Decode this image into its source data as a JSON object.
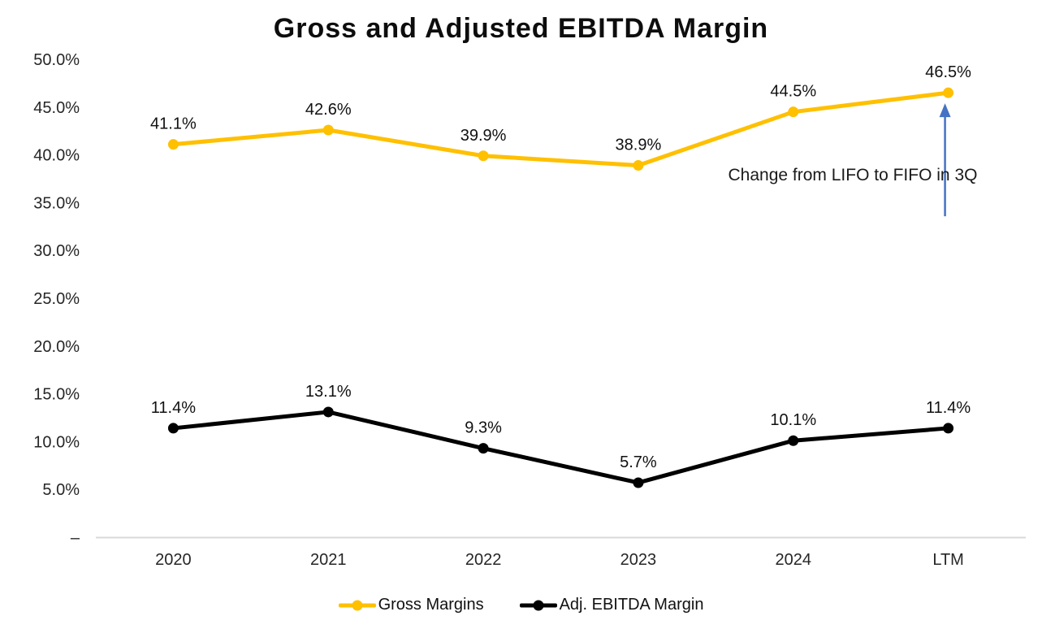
{
  "chart_data": {
    "type": "line",
    "title": "Gross and Adjusted EBITDA Margin",
    "categories": [
      "2020",
      "2021",
      "2022",
      "2023",
      "2024",
      "LTM"
    ],
    "series": [
      {
        "name": "Gross Margins",
        "color": "#FFC000",
        "values": [
          41.1,
          42.6,
          39.9,
          38.9,
          44.5,
          46.5
        ],
        "labels": [
          "41.1%",
          "42.6%",
          "39.9%",
          "38.9%",
          "44.5%",
          "46.5%"
        ]
      },
      {
        "name": "Adj. EBITDA Margin",
        "color": "#000000",
        "values": [
          11.4,
          13.1,
          9.3,
          5.7,
          10.1,
          11.4
        ],
        "labels": [
          "11.4%",
          "13.1%",
          "9.3%",
          "5.7%",
          "10.1%",
          "11.4%"
        ]
      }
    ],
    "y_axis": {
      "min": 0,
      "max": 50,
      "tick_values": [
        50,
        45,
        40,
        35,
        30,
        25,
        20,
        15,
        10,
        5,
        0
      ],
      "tick_labels": [
        "50.0%",
        "45.0%",
        "40.0%",
        "35.0%",
        "30.0%",
        "25.0%",
        "20.0%",
        "15.0%",
        "10.0%",
        "5.0%",
        "–"
      ]
    },
    "grid": false,
    "legend_position": "bottom",
    "axis_line_color": "#D9D9D9",
    "annotation": {
      "text": "Change from LIFO to FIFO in 3Q",
      "arrow_color": "#4472C4",
      "target_series": "Gross Margins",
      "target_category": "LTM"
    }
  }
}
